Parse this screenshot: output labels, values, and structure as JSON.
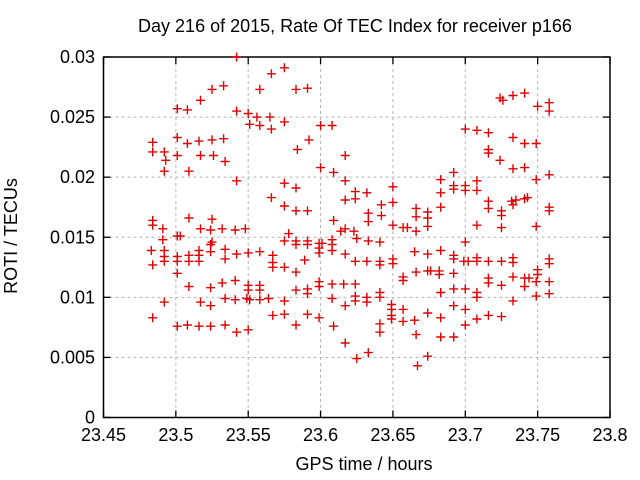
{
  "title": "Day 216 of 2015, Rate Of TEC Index for receiver p166",
  "chart_data": {
    "type": "scatter",
    "title": "Day 216 of 2015, Rate Of TEC Index for receiver p166",
    "xlabel": "GPS time / hours",
    "ylabel": "ROTI / TECUs",
    "xlim": [
      23.45,
      23.8
    ],
    "ylim": [
      0,
      0.03
    ],
    "xticks": [
      23.45,
      23.5,
      23.55,
      23.6,
      23.65,
      23.7,
      23.75,
      23.8
    ],
    "xtick_labels": [
      "23.45",
      "23.5",
      "23.55",
      "23.6",
      "23.65",
      "23.7",
      "23.75",
      "23.8"
    ],
    "yticks": [
      0,
      0.005,
      0.01,
      0.015,
      0.02,
      0.025,
      0.03
    ],
    "ytick_labels": [
      "0",
      "0.005",
      "0.01",
      "0.015",
      "0.02",
      "0.025",
      "0.03"
    ],
    "grid": true,
    "legend_position": "none",
    "marker": {
      "shape": "plus",
      "color": "#e00000",
      "size": 9,
      "stroke_width": 1.4
    },
    "grid_color": "#b5b5b5",
    "border_color": "#000000",
    "series": [
      {
        "name": "ROTI",
        "points": [
          [
            23.542,
            0.03
          ],
          [
            23.533,
            0.0276
          ],
          [
            23.525,
            0.0273
          ],
          [
            23.558,
            0.0273
          ],
          [
            23.517,
            0.0264
          ],
          [
            23.501,
            0.0257
          ],
          [
            23.508,
            0.0256
          ],
          [
            23.542,
            0.0255
          ],
          [
            23.55,
            0.0253
          ],
          [
            23.556,
            0.025
          ],
          [
            23.551,
            0.0244
          ],
          [
            23.558,
            0.0243
          ],
          [
            23.484,
            0.0229
          ],
          [
            23.484,
            0.0221
          ],
          [
            23.492,
            0.0221
          ],
          [
            23.493,
            0.0214
          ],
          [
            23.501,
            0.0233
          ],
          [
            23.501,
            0.0218
          ],
          [
            23.508,
            0.0228
          ],
          [
            23.516,
            0.023
          ],
          [
            23.517,
            0.0218
          ],
          [
            23.525,
            0.0231
          ],
          [
            23.526,
            0.0218
          ],
          [
            23.533,
            0.0232
          ],
          [
            23.534,
            0.0213
          ],
          [
            23.492,
            0.0205
          ],
          [
            23.509,
            0.0205
          ],
          [
            23.542,
            0.0197
          ],
          [
            23.484,
            0.0164
          ],
          [
            23.484,
            0.016
          ],
          [
            23.491,
            0.0157
          ],
          [
            23.509,
            0.0166
          ],
          [
            23.517,
            0.0157
          ],
          [
            23.525,
            0.0165
          ],
          [
            23.524,
            0.0156
          ],
          [
            23.532,
            0.0157
          ],
          [
            23.541,
            0.0156
          ],
          [
            23.548,
            0.0157
          ],
          [
            23.566,
            0.0286
          ],
          [
            23.575,
            0.0291
          ],
          [
            23.583,
            0.0273
          ],
          [
            23.591,
            0.0274
          ],
          [
            23.575,
            0.0246
          ],
          [
            23.565,
            0.025
          ],
          [
            23.566,
            0.024
          ],
          [
            23.6,
            0.0243
          ],
          [
            23.608,
            0.0243
          ],
          [
            23.592,
            0.0231
          ],
          [
            23.584,
            0.0223
          ],
          [
            23.617,
            0.0218
          ],
          [
            23.6,
            0.0208
          ],
          [
            23.609,
            0.0204
          ],
          [
            23.617,
            0.0197
          ],
          [
            23.575,
            0.0195
          ],
          [
            23.583,
            0.0191
          ],
          [
            23.566,
            0.0183
          ],
          [
            23.624,
            0.0188
          ],
          [
            23.624,
            0.0182
          ],
          [
            23.632,
            0.0187
          ],
          [
            23.617,
            0.0181
          ],
          [
            23.575,
            0.0176
          ],
          [
            23.583,
            0.0172
          ],
          [
            23.591,
            0.0172
          ],
          [
            23.65,
            0.0192
          ],
          [
            23.65,
            0.0179
          ],
          [
            23.642,
            0.0177
          ],
          [
            23.642,
            0.0168
          ],
          [
            23.633,
            0.017
          ],
          [
            23.633,
            0.0163
          ],
          [
            23.609,
            0.0164
          ],
          [
            23.617,
            0.0157
          ],
          [
            23.623,
            0.0155
          ],
          [
            23.65,
            0.016
          ],
          [
            23.657,
            0.0158
          ],
          [
            23.66,
            0.0158
          ],
          [
            23.666,
            0.0174
          ],
          [
            23.666,
            0.0167
          ],
          [
            23.674,
            0.0171
          ],
          [
            23.674,
            0.0166
          ],
          [
            23.674,
            0.0159
          ],
          [
            23.666,
            0.0155
          ],
          [
            23.724,
            0.0266
          ],
          [
            23.726,
            0.0264
          ],
          [
            23.733,
            0.0268
          ],
          [
            23.741,
            0.027
          ],
          [
            23.75,
            0.0259
          ],
          [
            23.758,
            0.0262
          ],
          [
            23.758,
            0.0255
          ],
          [
            23.7,
            0.024
          ],
          [
            23.708,
            0.0239
          ],
          [
            23.716,
            0.0237
          ],
          [
            23.733,
            0.0233
          ],
          [
            23.741,
            0.0228
          ],
          [
            23.749,
            0.0228
          ],
          [
            23.716,
            0.0223
          ],
          [
            23.716,
            0.022
          ],
          [
            23.724,
            0.0214
          ],
          [
            23.733,
            0.0207
          ],
          [
            23.741,
            0.0208
          ],
          [
            23.692,
            0.0204
          ],
          [
            23.758,
            0.0202
          ],
          [
            23.683,
            0.0198
          ],
          [
            23.692,
            0.0193
          ],
          [
            23.692,
            0.019
          ],
          [
            23.7,
            0.0193
          ],
          [
            23.7,
            0.0189
          ],
          [
            23.708,
            0.0197
          ],
          [
            23.708,
            0.0189
          ],
          [
            23.683,
            0.0187
          ],
          [
            23.749,
            0.0198
          ],
          [
            23.683,
            0.0175
          ],
          [
            23.716,
            0.018
          ],
          [
            23.716,
            0.0174
          ],
          [
            23.732,
            0.018
          ],
          [
            23.735,
            0.0181
          ],
          [
            23.741,
            0.0182
          ],
          [
            23.743,
            0.0183
          ],
          [
            23.725,
            0.0172
          ],
          [
            23.725,
            0.0168
          ],
          [
            23.733,
            0.0177
          ],
          [
            23.758,
            0.0175
          ],
          [
            23.758,
            0.0172
          ],
          [
            23.708,
            0.016
          ],
          [
            23.725,
            0.0158
          ],
          [
            23.749,
            0.0159
          ],
          [
            23.501,
            0.0151
          ],
          [
            23.503,
            0.0151
          ],
          [
            23.491,
            0.0148
          ],
          [
            23.525,
            0.0146
          ],
          [
            23.483,
            0.0139
          ],
          [
            23.492,
            0.0139
          ],
          [
            23.492,
            0.0134
          ],
          [
            23.492,
            0.013
          ],
          [
            23.484,
            0.0127
          ],
          [
            23.501,
            0.0134
          ],
          [
            23.501,
            0.013
          ],
          [
            23.509,
            0.0135
          ],
          [
            23.509,
            0.013
          ],
          [
            23.516,
            0.0139
          ],
          [
            23.516,
            0.0135
          ],
          [
            23.516,
            0.013
          ],
          [
            23.524,
            0.0144
          ],
          [
            23.524,
            0.0138
          ],
          [
            23.534,
            0.014
          ],
          [
            23.534,
            0.0132
          ],
          [
            23.542,
            0.0136
          ],
          [
            23.55,
            0.0137
          ],
          [
            23.558,
            0.0138
          ],
          [
            23.501,
            0.012
          ],
          [
            23.509,
            0.0109
          ],
          [
            23.524,
            0.0108
          ],
          [
            23.532,
            0.0112
          ],
          [
            23.541,
            0.0114
          ],
          [
            23.55,
            0.011
          ],
          [
            23.55,
            0.0106
          ],
          [
            23.558,
            0.011
          ],
          [
            23.558,
            0.0106
          ],
          [
            23.492,
            0.0096
          ],
          [
            23.517,
            0.0096
          ],
          [
            23.524,
            0.0093
          ],
          [
            23.534,
            0.0099
          ],
          [
            23.541,
            0.0098
          ],
          [
            23.549,
            0.0099
          ],
          [
            23.551,
            0.0098
          ],
          [
            23.558,
            0.0098
          ],
          [
            23.484,
            0.0083
          ],
          [
            23.501,
            0.0076
          ],
          [
            23.508,
            0.0077
          ],
          [
            23.516,
            0.0076
          ],
          [
            23.524,
            0.0076
          ],
          [
            23.534,
            0.0077
          ],
          [
            23.542,
            0.0071
          ],
          [
            23.55,
            0.0073
          ],
          [
            23.578,
            0.0153
          ],
          [
            23.614,
            0.0155
          ],
          [
            23.575,
            0.0147
          ],
          [
            23.583,
            0.0147
          ],
          [
            23.583,
            0.0144
          ],
          [
            23.591,
            0.0147
          ],
          [
            23.591,
            0.0144
          ],
          [
            23.599,
            0.0145
          ],
          [
            23.601,
            0.0145
          ],
          [
            23.608,
            0.0148
          ],
          [
            23.608,
            0.0144
          ],
          [
            23.625,
            0.0149
          ],
          [
            23.633,
            0.0147
          ],
          [
            23.641,
            0.0146
          ],
          [
            23.599,
            0.0141
          ],
          [
            23.599,
            0.0137
          ],
          [
            23.608,
            0.0139
          ],
          [
            23.617,
            0.0136
          ],
          [
            23.589,
            0.0131
          ],
          [
            23.624,
            0.013
          ],
          [
            23.632,
            0.013
          ],
          [
            23.641,
            0.013
          ],
          [
            23.641,
            0.0127
          ],
          [
            23.65,
            0.0132
          ],
          [
            23.65,
            0.0128
          ],
          [
            23.567,
            0.0135
          ],
          [
            23.567,
            0.0129
          ],
          [
            23.567,
            0.0125
          ],
          [
            23.575,
            0.0125
          ],
          [
            23.583,
            0.0121
          ],
          [
            23.665,
            0.0138
          ],
          [
            23.674,
            0.0136
          ],
          [
            23.666,
            0.0121
          ],
          [
            23.674,
            0.0122
          ],
          [
            23.676,
            0.0122
          ],
          [
            23.657,
            0.0117
          ],
          [
            23.657,
            0.0114
          ],
          [
            23.599,
            0.0113
          ],
          [
            23.599,
            0.0109
          ],
          [
            23.608,
            0.0111
          ],
          [
            23.616,
            0.0111
          ],
          [
            23.624,
            0.0111
          ],
          [
            23.583,
            0.0106
          ],
          [
            23.591,
            0.0107
          ],
          [
            23.591,
            0.0103
          ],
          [
            23.608,
            0.0099
          ],
          [
            23.617,
            0.0093
          ],
          [
            23.624,
            0.0101
          ],
          [
            23.624,
            0.0097
          ],
          [
            23.632,
            0.01
          ],
          [
            23.632,
            0.0096
          ],
          [
            23.641,
            0.0104
          ],
          [
            23.641,
            0.01
          ],
          [
            23.564,
            0.0099
          ],
          [
            23.575,
            0.0097
          ],
          [
            23.567,
            0.0085
          ],
          [
            23.575,
            0.0086
          ],
          [
            23.591,
            0.0086
          ],
          [
            23.599,
            0.0083
          ],
          [
            23.583,
            0.0077
          ],
          [
            23.609,
            0.0076
          ],
          [
            23.649,
            0.0094
          ],
          [
            23.649,
            0.009
          ],
          [
            23.657,
            0.009
          ],
          [
            23.649,
            0.0085
          ],
          [
            23.649,
            0.0082
          ],
          [
            23.657,
            0.008
          ],
          [
            23.665,
            0.0081
          ],
          [
            23.641,
            0.0078
          ],
          [
            23.641,
            0.0071
          ],
          [
            23.674,
            0.0087
          ],
          [
            23.666,
            0.0069
          ],
          [
            23.617,
            0.0062
          ],
          [
            23.633,
            0.0054
          ],
          [
            23.625,
            0.0049
          ],
          [
            23.674,
            0.0051
          ],
          [
            23.667,
            0.0043
          ],
          [
            23.7,
            0.0146
          ],
          [
            23.683,
            0.0139
          ],
          [
            23.692,
            0.0135
          ],
          [
            23.692,
            0.0132
          ],
          [
            23.699,
            0.013
          ],
          [
            23.702,
            0.013
          ],
          [
            23.708,
            0.0133
          ],
          [
            23.708,
            0.013
          ],
          [
            23.716,
            0.013
          ],
          [
            23.725,
            0.013
          ],
          [
            23.733,
            0.0133
          ],
          [
            23.733,
            0.0129
          ],
          [
            23.682,
            0.0122
          ],
          [
            23.682,
            0.0119
          ],
          [
            23.692,
            0.012
          ],
          [
            23.75,
            0.0123
          ],
          [
            23.75,
            0.0119
          ],
          [
            23.758,
            0.0132
          ],
          [
            23.758,
            0.0128
          ],
          [
            23.716,
            0.0116
          ],
          [
            23.716,
            0.0112
          ],
          [
            23.725,
            0.011
          ],
          [
            23.733,
            0.0117
          ],
          [
            23.741,
            0.0116
          ],
          [
            23.744,
            0.0116
          ],
          [
            23.741,
            0.0109
          ],
          [
            23.749,
            0.0113
          ],
          [
            23.758,
            0.0113
          ],
          [
            23.683,
            0.0104
          ],
          [
            23.692,
            0.0107
          ],
          [
            23.7,
            0.0107
          ],
          [
            23.708,
            0.0104
          ],
          [
            23.708,
            0.01
          ],
          [
            23.733,
            0.0097
          ],
          [
            23.749,
            0.0101
          ],
          [
            23.758,
            0.0103
          ],
          [
            23.692,
            0.0093
          ],
          [
            23.7,
            0.009
          ],
          [
            23.683,
            0.0083
          ],
          [
            23.708,
            0.0082
          ],
          [
            23.716,
            0.0085
          ],
          [
            23.725,
            0.0084
          ],
          [
            23.7,
            0.0077
          ],
          [
            23.683,
            0.0067
          ],
          [
            23.692,
            0.0067
          ]
        ]
      }
    ]
  }
}
